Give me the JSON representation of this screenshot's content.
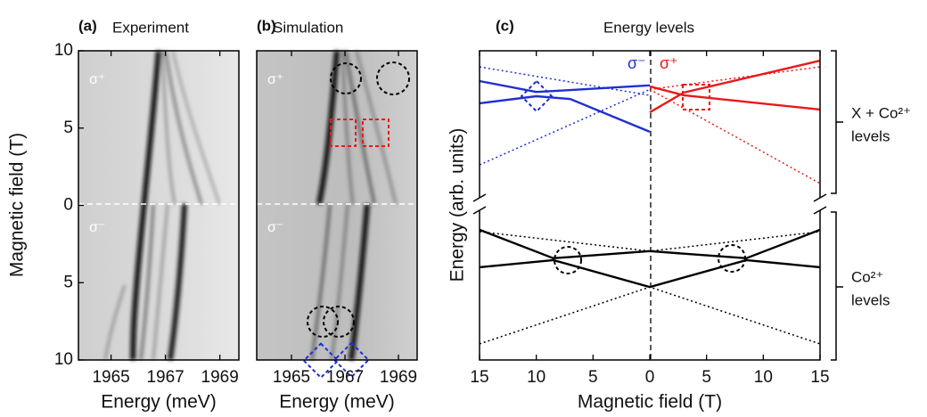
{
  "chart_data": [
    {
      "type": "heatmap",
      "label": "(a)",
      "title": "Experiment",
      "xlabel": "Energy (meV)",
      "ylabel": "Magnetic field (T)",
      "xlim": [
        1963.8,
        1969.7
      ],
      "xticks": [
        1965,
        1967,
        1969
      ],
      "ylim": [
        -10,
        10
      ],
      "yticks": [
        {
          "value": -10,
          "label": "10"
        },
        {
          "value": -5,
          "label": "5"
        },
        0,
        5,
        10
      ],
      "annotations": [
        "σ⁺",
        "σ⁻"
      ]
    },
    {
      "type": "heatmap",
      "label": "(b)",
      "title": "Simulation",
      "xlabel": "Energy (meV)",
      "xlim": [
        1963.7,
        1969.7
      ],
      "xticks": [
        1965,
        1967,
        1969
      ],
      "ylim": [
        -10,
        10
      ],
      "annotations": [
        "σ⁺",
        "σ⁻"
      ]
    },
    {
      "type": "line",
      "label": "(c)",
      "title": "Energy levels",
      "xlabel": "Magnetic field (T)",
      "ylabel": "Energy (arb. units)",
      "xlim": [
        -15,
        15
      ],
      "xticks": [
        {
          "value": -15,
          "label": "15"
        },
        {
          "value": -10,
          "label": "10"
        },
        {
          "value": -5,
          "label": "5"
        },
        0,
        5,
        10,
        15
      ],
      "ylim": [
        0,
        100
      ],
      "annotations": [
        "σ⁻",
        "σ⁺"
      ],
      "groups": [
        [
          "X + Co²⁺",
          "levels"
        ],
        [
          "Co²⁺",
          "levels"
        ]
      ],
      "series": [
        {
          "color": "#1f2fd0",
          "dash": false,
          "x": [
            -15,
            -10,
            -7,
            0
          ],
          "values": [
            90.2,
            86.7,
            87.3,
            88.8
          ]
        },
        {
          "color": "#1f2fd0",
          "dash": false,
          "x": [
            -15,
            -10,
            -7,
            0
          ],
          "values": [
            83.0,
            85.3,
            84.4,
            73.8
          ]
        },
        {
          "color": "#1f2fd0",
          "dash": true,
          "x": [
            -15,
            0
          ],
          "values": [
            94.8,
            85.6
          ]
        },
        {
          "color": "#1f2fd0",
          "dash": true,
          "x": [
            -15,
            0
          ],
          "values": [
            63.1,
            87.5
          ]
        },
        {
          "color": "#e8191b",
          "dash": false,
          "x": [
            0,
            3,
            15
          ],
          "values": [
            80.1,
            86.5,
            96.8
          ]
        },
        {
          "color": "#e8191b",
          "dash": false,
          "x": [
            0,
            3,
            15
          ],
          "values": [
            88.5,
            85.6,
            81.0
          ]
        },
        {
          "color": "#e8191b",
          "dash": true,
          "x": [
            0,
            15
          ],
          "values": [
            87.5,
            94.8
          ]
        },
        {
          "color": "#e8191b",
          "dash": true,
          "x": [
            0,
            15
          ],
          "values": [
            87.5,
            57.1
          ]
        },
        {
          "color": "#000000",
          "dash": false,
          "x": [
            -15,
            -8.5,
            0,
            8.5,
            15
          ],
          "values": [
            42.1,
            32.9,
            35.2,
            32.9,
            42.1
          ]
        },
        {
          "color": "#000000",
          "dash": false,
          "x": [
            -15,
            -8.5,
            0,
            8.5,
            15
          ],
          "values": [
            30.0,
            32.3,
            23.6,
            32.3,
            30.0
          ]
        },
        {
          "color": "#000000",
          "dash": true,
          "x": [
            -15,
            0,
            15
          ],
          "values": [
            41.5,
            35.2,
            41.5
          ]
        },
        {
          "color": "#000000",
          "dash": true,
          "x": [
            -15,
            0,
            15
          ],
          "values": [
            5.2,
            23.6,
            5.2
          ]
        }
      ]
    }
  ]
}
